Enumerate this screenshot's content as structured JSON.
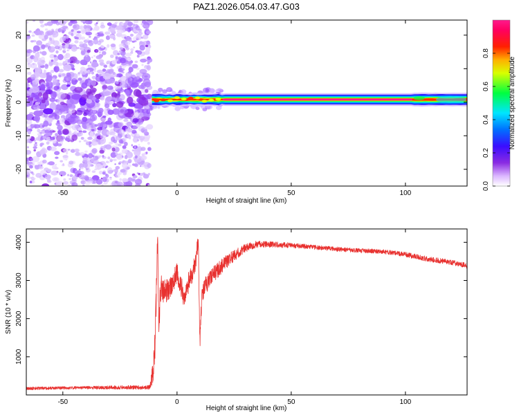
{
  "title": "PAZ1.2026.054.03.47.G03",
  "chart_data": [
    {
      "type": "heatmap",
      "name": "spectrogram",
      "xlabel": "Height of straight line (km)",
      "ylabel": "Frequency (Hz)",
      "xlim": [
        -66,
        127
      ],
      "ylim": [
        -25,
        24.5
      ],
      "xticks": [
        -50,
        0,
        50,
        100
      ],
      "xtick_labels": [
        "-50",
        "0",
        "50",
        "100"
      ],
      "yticks": [
        -20,
        -10,
        0,
        10,
        20
      ],
      "ytick_labels": [
        "-20",
        "-10",
        "0",
        "10",
        "20"
      ],
      "colorbar": {
        "label": "Normalized spectral amplitude",
        "range": [
          0,
          1
        ],
        "ticks": [
          0,
          0.2,
          0.4,
          0.6,
          0.8
        ],
        "tick_labels": [
          "0.0",
          "0.2",
          "0.4",
          "0.6",
          "0.8"
        ],
        "colormap": "rainbow (white-violet-blue-cyan-green-yellow-red-magenta)"
      },
      "features": {
        "noise_region_x": [
          -66,
          -12
        ],
        "onset_x": -12,
        "transition_x": [
          -12,
          20
        ],
        "carrier_frequency_hz": 0.8,
        "peak_amplitude_region_x": [
          20,
          103
        ],
        "broadened_region_x": [
          103,
          127
        ]
      }
    },
    {
      "type": "line",
      "name": "snr",
      "xlabel": "Height of straight line (km)",
      "ylabel": "SNR (10 * v/v)",
      "xlim": [
        -66,
        127
      ],
      "ylim": [
        0,
        4350
      ],
      "xticks": [
        -50,
        0,
        50,
        100
      ],
      "xtick_labels": [
        "-50",
        "0",
        "50",
        "100"
      ],
      "yticks": [
        1000,
        2000,
        3000,
        4000
      ],
      "ytick_labels": [
        "1000",
        "2000",
        "3000",
        "4000"
      ],
      "color": "#e8312f",
      "series": [
        {
          "name": "SNR",
          "x": [
            -66,
            -40,
            -12,
            -10.5,
            -9.5,
            -8.5,
            -8,
            -7,
            -5,
            -3,
            0,
            3,
            6,
            8,
            9.3,
            10,
            11,
            15,
            20,
            25,
            30,
            35,
            40,
            50,
            60,
            70,
            80,
            90,
            100,
            110,
            120,
            127
          ],
          "y": [
            170,
            190,
            200,
            600,
            1500,
            4200,
            2000,
            2800,
            2700,
            2850,
            3200,
            2600,
            3100,
            3400,
            4100,
            1400,
            2700,
            3100,
            3400,
            3650,
            3850,
            3950,
            3950,
            3920,
            3870,
            3820,
            3780,
            3760,
            3680,
            3560,
            3480,
            3380
          ],
          "noise_amplitude": [
            40,
            40,
            60,
            300,
            500,
            300,
            500,
            350,
            300,
            300,
            280,
            280,
            280,
            250,
            200,
            250,
            260,
            240,
            200,
            150,
            110,
            90,
            80,
            70,
            60,
            60,
            60,
            60,
            65,
            70,
            70,
            70
          ]
        }
      ]
    }
  ]
}
